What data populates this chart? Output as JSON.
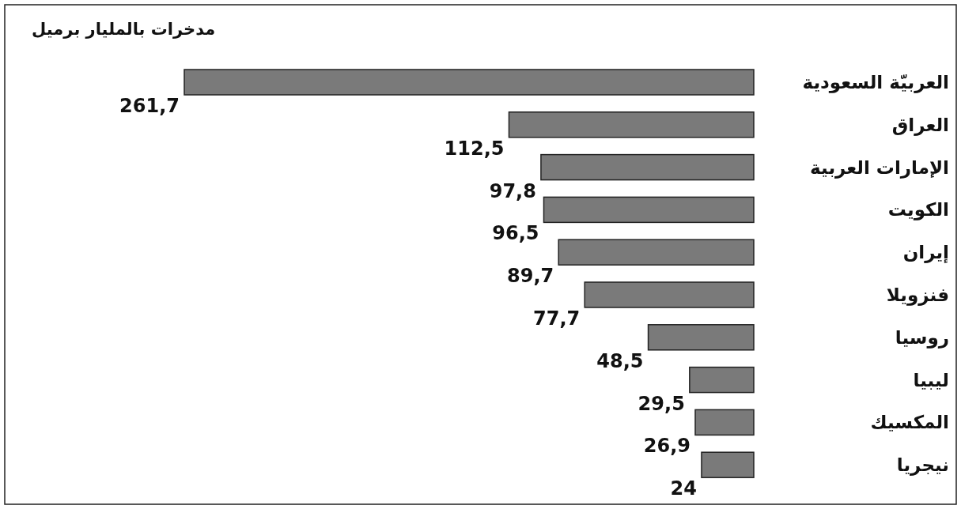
{
  "chart_data": {
    "type": "bar",
    "orientation": "horizontal",
    "title": "مدخرات بالمليار برميل",
    "categories": [
      "العربيّة السعودية",
      "العراق",
      "الإمارات العربية",
      "الكويت",
      "إيران",
      "فنزويلا",
      "روسيا",
      "ليبيا",
      "المكسيك",
      "نيجريا"
    ],
    "values": [
      261.7,
      112.5,
      97.8,
      96.5,
      89.7,
      77.7,
      48.5,
      29.5,
      26.9,
      24
    ],
    "value_labels": [
      "261,7",
      "112,5",
      "97,8",
      "96,5",
      "89,7",
      "77,7",
      "48,5",
      "29,5",
      "26,9",
      "24"
    ],
    "color": "#7a7a7a"
  }
}
